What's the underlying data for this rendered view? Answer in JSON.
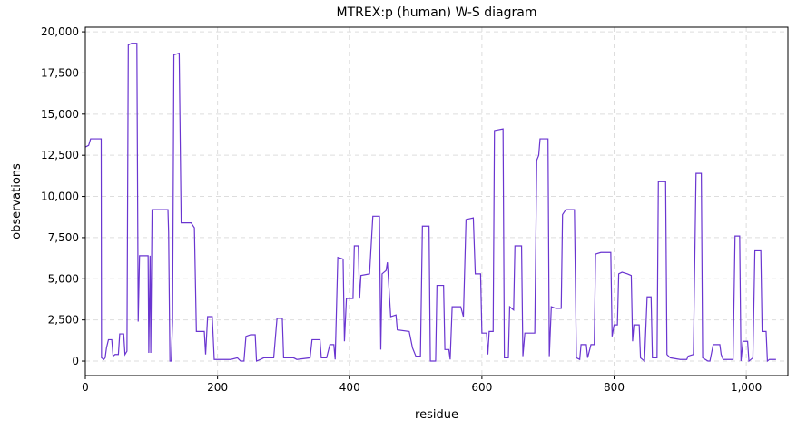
{
  "chart_data": {
    "type": "line",
    "title": "MTREX:p (human) W-S diagram",
    "x_label": "residue",
    "y_label": "observations",
    "x": [
      0,
      5,
      8,
      24,
      24.5,
      28,
      30,
      32,
      35,
      40,
      42,
      45,
      50,
      52,
      58,
      60,
      63,
      65,
      70,
      78,
      80,
      82,
      95,
      96,
      98,
      99,
      101,
      125,
      126,
      128,
      130,
      132,
      134,
      142,
      145,
      160,
      165,
      168,
      180,
      182,
      185,
      192,
      195,
      220,
      230,
      235,
      240,
      243,
      250,
      257,
      259,
      265,
      270,
      285,
      290,
      298,
      300,
      315,
      320,
      340,
      343,
      355,
      357,
      365,
      370,
      376,
      378,
      382,
      390,
      392,
      395,
      405,
      407,
      413,
      415,
      417,
      430,
      435,
      445,
      447,
      449,
      455,
      457,
      462,
      470,
      472,
      490,
      495,
      500,
      507,
      510,
      520,
      522,
      530,
      532,
      542,
      544,
      550,
      552,
      555,
      568,
      572,
      576,
      587,
      590,
      598,
      600,
      607,
      609,
      611,
      617,
      619,
      632,
      634,
      640,
      642,
      648,
      650,
      660,
      662,
      665,
      680,
      683,
      686,
      688,
      700,
      702,
      705,
      712,
      720,
      722,
      727,
      740,
      743,
      748,
      750,
      758,
      760,
      765,
      770,
      772,
      780,
      795,
      797,
      800,
      805,
      807,
      812,
      820,
      826,
      828,
      830,
      838,
      840,
      846,
      850,
      856,
      858,
      865,
      867,
      878,
      880,
      885,
      900,
      910,
      912,
      920,
      924,
      932,
      934,
      942,
      945,
      950,
      960,
      962,
      965,
      980,
      983,
      990,
      992,
      995,
      1002,
      1004,
      1010,
      1013,
      1022,
      1024,
      1030,
      1032,
      1035,
      1045
    ],
    "series": [
      {
        "name": "observations",
        "color": "#6a35d0",
        "values": [
          13000,
          13100,
          13500,
          13500,
          200,
          100,
          200,
          800,
          1300,
          1300,
          300,
          400,
          400,
          1650,
          1650,
          400,
          600,
          19200,
          19300,
          19300,
          2400,
          6400,
          6400,
          500,
          6400,
          500,
          9200,
          9200,
          7800,
          0,
          0,
          2400,
          18600,
          18700,
          8400,
          8400,
          8100,
          1800,
          1800,
          400,
          2700,
          2700,
          100,
          100,
          200,
          0,
          0,
          1500,
          1600,
          1600,
          0,
          100,
          200,
          200,
          2600,
          2600,
          200,
          200,
          100,
          200,
          1300,
          1300,
          200,
          200,
          1000,
          1000,
          100,
          6300,
          6200,
          1200,
          3800,
          3800,
          7000,
          7000,
          3800,
          5200,
          5300,
          8800,
          8800,
          700,
          5300,
          5500,
          6000,
          2700,
          2800,
          1900,
          1800,
          800,
          300,
          300,
          8200,
          8200,
          0,
          0,
          4600,
          4600,
          700,
          700,
          100,
          3300,
          3300,
          2700,
          8600,
          8700,
          5300,
          5300,
          1700,
          1700,
          400,
          1800,
          1800,
          14000,
          14100,
          200,
          200,
          3300,
          3100,
          7000,
          7000,
          300,
          1700,
          1700,
          12200,
          12500,
          13500,
          13500,
          300,
          3300,
          3200,
          3200,
          8900,
          9200,
          9200,
          200,
          100,
          1000,
          1000,
          200,
          1000,
          1000,
          6500,
          6600,
          6600,
          1500,
          2200,
          2200,
          5300,
          5400,
          5300,
          5200,
          1200,
          2200,
          2200,
          200,
          0,
          3900,
          3900,
          200,
          200,
          10900,
          10900,
          400,
          200,
          100,
          100,
          300,
          400,
          11400,
          11400,
          200,
          0,
          0,
          1000,
          1000,
          400,
          100,
          100,
          7600,
          7600,
          0,
          1200,
          1200,
          0,
          200,
          6700,
          6700,
          1800,
          1800,
          0,
          100,
          100
        ]
      }
    ],
    "xlim": [
      0,
      1063
    ],
    "ylim": [
      -880,
      20280
    ],
    "xticks": [
      0,
      200,
      400,
      600,
      800,
      {
        "value": 1000,
        "label": "1,000"
      }
    ],
    "yticks": [
      0,
      {
        "value": 2500,
        "label": "2,500"
      },
      {
        "value": 5000,
        "label": "5,000"
      },
      {
        "value": 7500,
        "label": "7,500"
      },
      {
        "value": 10000,
        "label": "10,000"
      },
      {
        "value": 12500,
        "label": "12,500"
      },
      {
        "value": 15000,
        "label": "15,000"
      },
      {
        "value": 17500,
        "label": "17,500"
      },
      {
        "value": 20000,
        "label": "20,000"
      }
    ],
    "grid": true
  }
}
